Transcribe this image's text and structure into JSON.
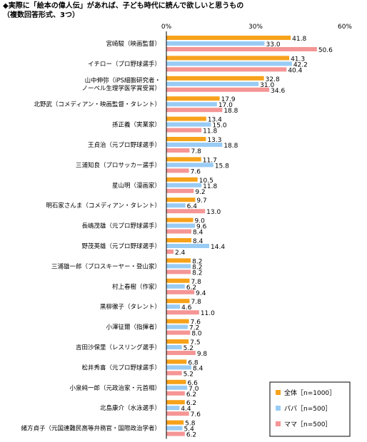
{
  "title": {
    "line1": "◆実際に「絵本の偉人伝」があれば、子ども時代に読んで欲しいと思うもの",
    "line2": "（複数回答形式、3つ）"
  },
  "colors": {
    "all": "#f7a21b",
    "papa": "#99ccf5",
    "mama": "#f59595",
    "axis": "#000000"
  },
  "chart_data": {
    "type": "bar",
    "orientation": "horizontal",
    "title": "◆実際に「絵本の偉人伝」があれば、子ども時代に読んで欲しいと思うもの",
    "subtitle": "（複数回答形式、3つ）",
    "xlim": [
      0,
      60
    ],
    "x_ticks": [
      "0%",
      "30%",
      "60%"
    ],
    "legend_position": "bottom-right",
    "categories": [
      [
        "宮崎駿（映画監督）"
      ],
      [
        "イチロー（プロ野球選手）"
      ],
      [
        "山中伸弥（iPS細胞研究者・",
        "ノーベル生理学医学賞受賞）"
      ],
      [
        "北野武（コメディアン・映画監督・タレント）"
      ],
      [
        "孫正義（実業家）"
      ],
      [
        "王貞治（元プロ野球選手）"
      ],
      [
        "三浦知良（プロサッカー選手）"
      ],
      [
        "星山明（漫画家）"
      ],
      [
        "明石家さんま（コメディアン・タレント）"
      ],
      [
        "長嶋茂雄（元プロ野球選手）"
      ],
      [
        "野茂英雄（元プロ野球選手）"
      ],
      [
        "三浦雄一郎（プロスキーヤー・登山家）"
      ],
      [
        "村上春樹（作家）"
      ],
      [
        "黒柳徹子（タレント）"
      ],
      [
        "小澤征爾（指揮者）"
      ],
      [
        "吉田沙保里（レスリング選手）"
      ],
      [
        "松井秀喜（元プロ野球選手）"
      ],
      [
        "小泉純一郎（元政治家・元首相）"
      ],
      [
        "北島康介（水泳選手）"
      ],
      [
        "緒方貞子（元国連難民高等弁務官・国際政治学者）"
      ]
    ],
    "series": [
      {
        "name": "全体［n=1000］",
        "key": "all",
        "values": [
          41.8,
          41.3,
          32.8,
          17.9,
          13.4,
          13.3,
          11.7,
          10.5,
          9.7,
          9.0,
          8.4,
          8.2,
          7.8,
          7.8,
          7.6,
          7.5,
          6.8,
          6.6,
          6.2,
          5.8
        ],
        "labels": [
          "41.8",
          "41.3",
          "32.8",
          "17.9",
          "13.4",
          "13.3",
          "11.7",
          "10.5",
          "9.7",
          "9.0",
          "8.4",
          "8.2",
          "7.8",
          "7.8",
          "7.6",
          "7.5",
          "6.8",
          "6.6",
          "6.2",
          "5.8"
        ]
      },
      {
        "name": "パパ［n=500］",
        "key": "papa",
        "values": [
          33.0,
          42.2,
          31.0,
          17.0,
          15.0,
          18.8,
          15.8,
          11.8,
          6.4,
          9.6,
          14.4,
          8.2,
          6.2,
          4.6,
          7.2,
          5.2,
          8.4,
          7.0,
          4.4,
          5.4
        ],
        "labels": [
          "33.0",
          "42.2",
          "31.0",
          "17.0",
          "15.0",
          "18.8",
          "15.8",
          "11.8",
          "6.4",
          "9.6",
          "14.4",
          "8.2",
          "6.2",
          "4.6",
          "7.2",
          "5.2",
          "8.4",
          "7.0",
          "4.4",
          "5.4"
        ]
      },
      {
        "name": "ママ［n=500］",
        "key": "mama",
        "values": [
          50.6,
          40.4,
          34.6,
          18.8,
          11.8,
          7.8,
          7.6,
          9.2,
          13.0,
          8.4,
          2.4,
          8.2,
          9.4,
          11.0,
          8.0,
          9.8,
          5.2,
          6.2,
          7.6,
          6.2
        ],
        "labels": [
          "50.6",
          "40.4",
          "34.6",
          "18.8",
          "11.8",
          "7.8",
          "7.6",
          "9.2",
          "13.0",
          "8.4",
          "2.4",
          "8.2",
          "9.4",
          "11.0",
          "8.0",
          "9.8",
          "5.2",
          "6.2",
          "7.6",
          "6.2"
        ]
      }
    ]
  }
}
